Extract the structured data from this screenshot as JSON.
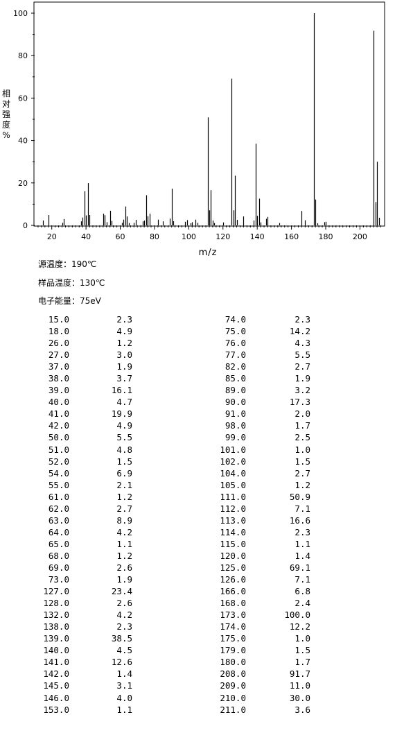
{
  "chart_data": {
    "type": "bar",
    "title": "",
    "xlabel": "m/z",
    "ylabel": "相对强度 %",
    "ylim": [
      0,
      100
    ],
    "xlim": [
      10,
      214
    ],
    "xticks": [
      20,
      40,
      60,
      80,
      100,
      120,
      140,
      160,
      180,
      200
    ],
    "yticks": [
      0,
      20,
      40,
      60,
      80,
      100
    ],
    "grid": false,
    "x": [
      15.0,
      18.0,
      26.0,
      27.0,
      37.0,
      38.0,
      39.0,
      40.0,
      41.0,
      42.0,
      50.0,
      51.0,
      52.0,
      54.0,
      55.0,
      61.0,
      62.0,
      63.0,
      64.0,
      65.0,
      68.0,
      69.0,
      73.0,
      74.0,
      75.0,
      76.0,
      77.0,
      82.0,
      85.0,
      89.0,
      90.0,
      91.0,
      98.0,
      99.0,
      101.0,
      102.0,
      104.0,
      105.0,
      111.0,
      112.0,
      113.0,
      114.0,
      115.0,
      120.0,
      125.0,
      126.0,
      127.0,
      128.0,
      132.0,
      138.0,
      139.0,
      140.0,
      141.0,
      142.0,
      145.0,
      146.0,
      153.0,
      166.0,
      168.0,
      173.0,
      174.0,
      175.0,
      179.0,
      180.0,
      208.0,
      209.0,
      210.0,
      211.0
    ],
    "values": [
      2.3,
      4.9,
      1.2,
      3.0,
      1.9,
      3.7,
      16.1,
      4.7,
      19.9,
      4.9,
      5.5,
      4.8,
      1.5,
      6.9,
      2.1,
      1.2,
      2.7,
      8.9,
      4.2,
      1.1,
      1.2,
      2.6,
      1.9,
      2.3,
      14.2,
      4.3,
      5.5,
      2.7,
      1.9,
      3.2,
      17.3,
      2.0,
      1.7,
      2.5,
      1.0,
      1.5,
      2.7,
      1.2,
      50.9,
      7.1,
      16.6,
      2.3,
      1.1,
      1.4,
      69.1,
      7.1,
      23.4,
      2.6,
      4.2,
      2.3,
      38.5,
      4.5,
      12.6,
      1.4,
      3.1,
      4.0,
      1.1,
      6.8,
      2.4,
      100.0,
      12.2,
      1.0,
      1.5,
      1.7,
      91.7,
      11.0,
      30.0,
      3.6
    ]
  },
  "conditions": {
    "source_temp": "源温度：190℃",
    "sample_temp": "样品温度：130℃",
    "electron_energy": "电子能量：75eV"
  },
  "table": {
    "rows": [
      [
        "15.0",
        "2.3",
        "74.0",
        "2.3"
      ],
      [
        "18.0",
        "4.9",
        "75.0",
        "14.2"
      ],
      [
        "26.0",
        "1.2",
        "76.0",
        "4.3"
      ],
      [
        "27.0",
        "3.0",
        "77.0",
        "5.5"
      ],
      [
        "37.0",
        "1.9",
        "82.0",
        "2.7"
      ],
      [
        "38.0",
        "3.7",
        "85.0",
        "1.9"
      ],
      [
        "39.0",
        "16.1",
        "89.0",
        "3.2"
      ],
      [
        "40.0",
        "4.7",
        "90.0",
        "17.3"
      ],
      [
        "41.0",
        "19.9",
        "91.0",
        "2.0"
      ],
      [
        "42.0",
        "4.9",
        "98.0",
        "1.7"
      ],
      [
        "50.0",
        "5.5",
        "99.0",
        "2.5"
      ],
      [
        "51.0",
        "4.8",
        "101.0",
        "1.0"
      ],
      [
        "52.0",
        "1.5",
        "102.0",
        "1.5"
      ],
      [
        "54.0",
        "6.9",
        "104.0",
        "2.7"
      ],
      [
        "55.0",
        "2.1",
        "105.0",
        "1.2"
      ],
      [
        "61.0",
        "1.2",
        "111.0",
        "50.9"
      ],
      [
        "62.0",
        "2.7",
        "112.0",
        "7.1"
      ],
      [
        "63.0",
        "8.9",
        "113.0",
        "16.6"
      ],
      [
        "64.0",
        "4.2",
        "114.0",
        "2.3"
      ],
      [
        "65.0",
        "1.1",
        "115.0",
        "1.1"
      ],
      [
        "68.0",
        "1.2",
        "120.0",
        "1.4"
      ],
      [
        "69.0",
        "2.6",
        "125.0",
        "69.1"
      ],
      [
        "73.0",
        "1.9",
        "126.0",
        "7.1"
      ],
      [
        "127.0",
        "23.4",
        "166.0",
        "6.8"
      ],
      [
        "128.0",
        "2.6",
        "168.0",
        "2.4"
      ],
      [
        "132.0",
        "4.2",
        "173.0",
        "100.0"
      ],
      [
        "138.0",
        "2.3",
        "174.0",
        "12.2"
      ],
      [
        "139.0",
        "38.5",
        "175.0",
        "1.0"
      ],
      [
        "140.0",
        "4.5",
        "179.0",
        "1.5"
      ],
      [
        "141.0",
        "12.6",
        "180.0",
        "1.7"
      ],
      [
        "142.0",
        "1.4",
        "208.0",
        "91.7"
      ],
      [
        "145.0",
        "3.1",
        "209.0",
        "11.0"
      ],
      [
        "146.0",
        "4.0",
        "210.0",
        "30.0"
      ],
      [
        "153.0",
        "1.1",
        "211.0",
        "3.6"
      ]
    ]
  }
}
